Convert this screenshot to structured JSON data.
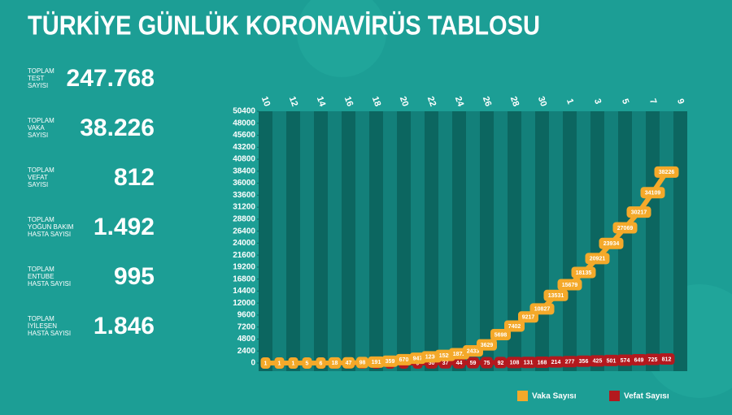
{
  "title": "TÜRKİYE GÜNLÜK KORONAVİRÜS TABLOSU",
  "stats": [
    {
      "label": [
        "TOPLAM",
        "TEST",
        "SAYISI"
      ],
      "value": "247.768"
    },
    {
      "label": [
        "TOPLAM",
        "VAKA",
        "SAYISI"
      ],
      "value": "38.226"
    },
    {
      "label": [
        "TOPLAM",
        "VEFAT",
        "SAYISI"
      ],
      "value": "812"
    },
    {
      "label": [
        "TOPLAM",
        "YOĞUN BAKIM",
        "HASTA SAYISI"
      ],
      "value": "1.492"
    },
    {
      "label": [
        "TOPLAM",
        "ENTUBE",
        "HASTA SAYISI"
      ],
      "value": "995"
    },
    {
      "label": [
        "TOPLAM",
        "İYİLEŞEN",
        "HASTA SAYISI"
      ],
      "value": "1.846"
    }
  ],
  "chart_data": {
    "type": "line",
    "categories": [
      "10",
      null,
      "12",
      null,
      "14",
      null,
      "16",
      null,
      "18",
      null,
      "20",
      null,
      "22",
      null,
      "24",
      null,
      "26",
      null,
      "28",
      null,
      "30",
      null,
      "1",
      null,
      "3",
      null,
      "5",
      null,
      "7",
      null,
      "9"
    ],
    "series": [
      {
        "name": "Vaka Sayısı",
        "color": "#f4a92a",
        "values": [
          1,
          1,
          1,
          5,
          6,
          18,
          47,
          98,
          191,
          359,
          670,
          947,
          1236,
          1529,
          1872,
          2433,
          3629,
          5698,
          7402,
          9217,
          10827,
          13531,
          15679,
          18135,
          20921,
          23934,
          27069,
          30217,
          34109,
          38226,
          null
        ]
      },
      {
        "name": "Vefat Sayısı",
        "color": "#b3191e",
        "values": [
          0,
          0,
          0,
          0,
          0,
          0,
          0,
          1,
          2,
          3,
          4,
          9,
          30,
          37,
          44,
          59,
          75,
          92,
          108,
          131,
          168,
          214,
          277,
          356,
          425,
          501,
          574,
          649,
          725,
          812,
          null
        ]
      }
    ],
    "ylim": [
      0,
      50400
    ],
    "yticks": [
      0,
      2400,
      4800,
      7200,
      9600,
      12000,
      14400,
      16800,
      19200,
      21600,
      24000,
      26400,
      28800,
      31200,
      33600,
      36000,
      38400,
      40800,
      43200,
      45600,
      48000,
      50400
    ]
  }
}
